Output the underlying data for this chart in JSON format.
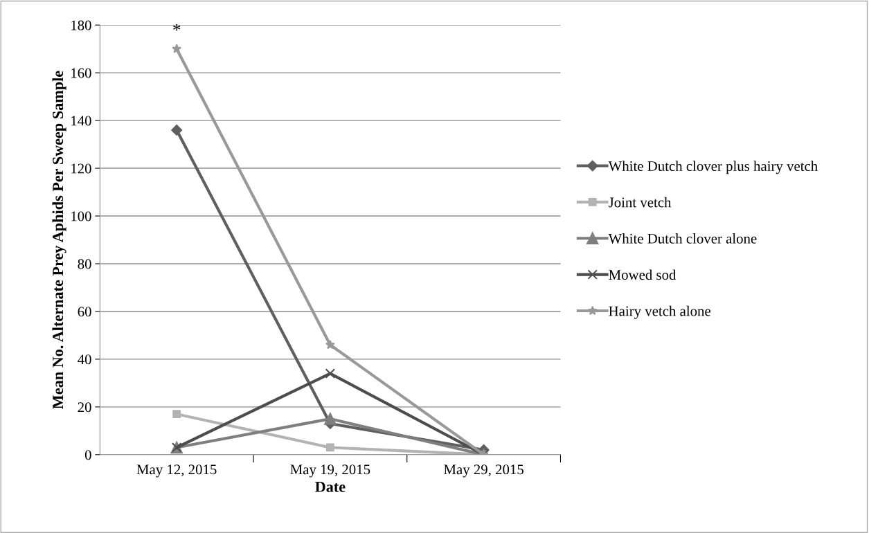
{
  "chart_data": {
    "type": "line",
    "xlabel": "Date",
    "ylabel": "Mean No. Alternate Prey Aphids Per Sweep Sample",
    "categories": [
      "May 12, 2015",
      "May 19, 2015",
      "May 29, 2015"
    ],
    "series": [
      {
        "name": "White Dutch clover plus hairy vetch",
        "color": "#5f5f5f",
        "marker": "diamond",
        "values": [
          136,
          13,
          2
        ]
      },
      {
        "name": "Joint vetch",
        "color": "#b3b3b3",
        "marker": "square",
        "values": [
          17,
          3,
          0
        ]
      },
      {
        "name": "White Dutch clover alone",
        "color": "#7f7f7f",
        "marker": "triangle",
        "values": [
          3,
          15,
          0
        ]
      },
      {
        "name": "Mowed sod",
        "color": "#4d4d4d",
        "marker": "cross",
        "values": [
          3,
          34,
          0
        ]
      },
      {
        "name": "Hairy vetch alone",
        "color": "#999999",
        "marker": "star",
        "values": [
          170,
          46,
          0
        ]
      }
    ],
    "annotations": [
      {
        "text": "*",
        "x": "May 12, 2015",
        "y": 170
      }
    ],
    "ylim": [
      0,
      180
    ],
    "yticks": [
      0,
      20,
      40,
      60,
      80,
      100,
      120,
      140,
      160,
      180
    ],
    "grid": "y",
    "legend": "right"
  }
}
